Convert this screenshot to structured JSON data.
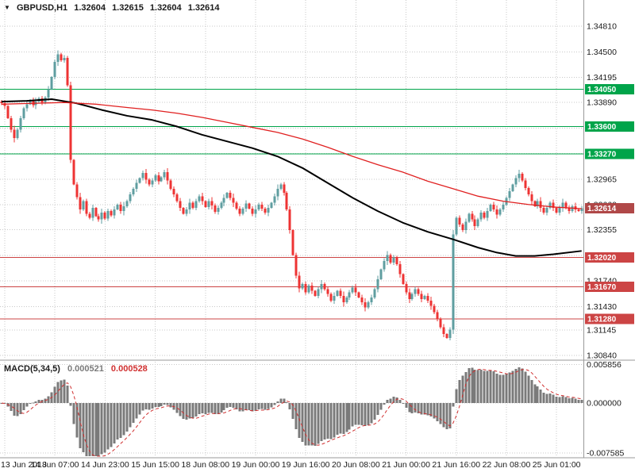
{
  "header": {
    "dropdown_icon": "▼",
    "symbol_timeframe": "GBPUSD,H1",
    "open": "1.32604",
    "high": "1.32615",
    "low": "1.32604",
    "close": "1.32614"
  },
  "macd": {
    "title": "MACD(5,34,5)",
    "value1": "0.000521",
    "value2": "0.000528"
  },
  "colors": {
    "background": "#FFFFFF",
    "up_candle": "#5F9EA0",
    "down_candle": "#EE3333",
    "ma_black": "#000000",
    "ma_red": "#E02020",
    "level_green": "#00A44A",
    "level_red": "#CC4444",
    "current_price_bg": "#B04848",
    "histogram": "#7A7A7A",
    "signal": "#D03030",
    "grid": "#C9C9C9",
    "axis_text": "#1A1A1A",
    "separator": "#999999"
  },
  "chart_data": {
    "type": "candlestick",
    "symbol": "GBPUSD",
    "timeframe": "H1",
    "title": "GBPUSD,H1 1.32604 1.32615 1.32604 1.32614",
    "price_axis_ticks": [
      "1.34810",
      "1.34500",
      "1.34195",
      "1.33890",
      "1.33580",
      "1.33275",
      "1.32965",
      "1.32660",
      "1.32355",
      "1.32045",
      "1.31740",
      "1.31430",
      "1.31145",
      "1.30840"
    ],
    "current_price": "1.32614",
    "green_levels": [
      "1.34050",
      "1.33600",
      "1.33270"
    ],
    "red_levels": [
      "1.32020",
      "1.31670",
      "1.31280"
    ],
    "x_labels": [
      "13 Jun 2018",
      "14 Jun 07:00",
      "14 Jun 23:00",
      "15 Jun 15:00",
      "18 Jun 08:00",
      "19 Jun 00:00",
      "19 Jun 16:00",
      "20 Jun 08:00",
      "21 Jun 00:00",
      "21 Jun 16:00",
      "22 Jun 08:00",
      "25 Jun 01:00"
    ],
    "x_label_bars": [
      1,
      17,
      33,
      49,
      65,
      81,
      97,
      113,
      129,
      145,
      161,
      177
    ],
    "price_range": [
      1.30802,
      1.35126
    ],
    "macd_params": [
      5,
      34,
      5
    ],
    "macd_axis_labels": [
      "0.005856",
      "0.000000",
      "-0.007585"
    ],
    "macd_range": [
      -0.0082,
      0.0063
    ],
    "first_open": 1.339,
    "closes": [
      1.3388,
      1.3385,
      1.337,
      1.3356,
      1.3346,
      1.3356,
      1.337,
      1.3382,
      1.3387,
      1.3392,
      1.3386,
      1.339,
      1.3394,
      1.3389,
      1.3395,
      1.3405,
      1.342,
      1.3438,
      1.3447,
      1.344,
      1.3443,
      1.341,
      1.332,
      1.329,
      1.3275,
      1.326,
      1.327,
      1.3255,
      1.325,
      1.3262,
      1.3252,
      1.3248,
      1.3256,
      1.3249,
      1.3258,
      1.3253,
      1.326,
      1.3266,
      1.3258,
      1.3264,
      1.327,
      1.3278,
      1.3285,
      1.3292,
      1.3298,
      1.3304,
      1.3296,
      1.329,
      1.3295,
      1.3301,
      1.3294,
      1.3299,
      1.3305,
      1.3295,
      1.3285,
      1.3278,
      1.327,
      1.3262,
      1.3255,
      1.326,
      1.3268,
      1.3262,
      1.327,
      1.3276,
      1.327,
      1.3263,
      1.327,
      1.3265,
      1.3257,
      1.3262,
      1.3268,
      1.3274,
      1.328,
      1.3274,
      1.3268,
      1.3261,
      1.3255,
      1.3261,
      1.3267,
      1.3261,
      1.3255,
      1.326,
      1.3266,
      1.3261,
      1.3256,
      1.3262,
      1.3268,
      1.3276,
      1.3285,
      1.329,
      1.328,
      1.326,
      1.3235,
      1.3205,
      1.318,
      1.3165,
      1.317,
      1.316,
      1.3168,
      1.3162,
      1.3156,
      1.3164,
      1.317,
      1.3164,
      1.3158,
      1.315,
      1.3156,
      1.3162,
      1.3156,
      1.3148,
      1.3154,
      1.316,
      1.3166,
      1.316,
      1.3154,
      1.3148,
      1.3142,
      1.3148,
      1.3154,
      1.3164,
      1.3176,
      1.3188,
      1.3198,
      1.3205,
      1.3196,
      1.3202,
      1.3194,
      1.3182,
      1.317,
      1.316,
      1.3152,
      1.3158,
      1.3164,
      1.3158,
      1.3152,
      1.3156,
      1.315,
      1.3144,
      1.3136,
      1.3128,
      1.3118,
      1.311,
      1.3105,
      1.3115,
      1.323,
      1.325,
      1.3242,
      1.3235,
      1.3245,
      1.3255,
      1.3248,
      1.324,
      1.3248,
      1.3256,
      1.325,
      1.3258,
      1.3266,
      1.326,
      1.3254,
      1.326,
      1.3266,
      1.3274,
      1.3282,
      1.329,
      1.3298,
      1.3303,
      1.3295,
      1.3286,
      1.3278,
      1.327,
      1.3264,
      1.327,
      1.3262,
      1.3256,
      1.3262,
      1.3268,
      1.3262,
      1.3256,
      1.3262,
      1.3268,
      1.3262,
      1.3258,
      1.3264,
      1.326,
      1.3258,
      1.32614
    ],
    "ma_black_points": [
      [
        0,
        1.339
      ],
      [
        8,
        1.3391
      ],
      [
        16,
        1.3393
      ],
      [
        24,
        1.3388
      ],
      [
        32,
        1.338
      ],
      [
        40,
        1.3373
      ],
      [
        48,
        1.3368
      ],
      [
        56,
        1.336
      ],
      [
        64,
        1.335
      ],
      [
        72,
        1.3342
      ],
      [
        80,
        1.3334
      ],
      [
        88,
        1.3324
      ],
      [
        96,
        1.331
      ],
      [
        104,
        1.3292
      ],
      [
        112,
        1.3274
      ],
      [
        120,
        1.3258
      ],
      [
        128,
        1.3244
      ],
      [
        136,
        1.3233
      ],
      [
        144,
        1.3224
      ],
      [
        152,
        1.3214
      ],
      [
        158,
        1.3208
      ],
      [
        164,
        1.3204
      ],
      [
        170,
        1.3204
      ],
      [
        176,
        1.3206
      ],
      [
        185,
        1.321
      ]
    ],
    "ma_red_points": [
      [
        0,
        1.3387
      ],
      [
        10,
        1.3388
      ],
      [
        20,
        1.3389
      ],
      [
        30,
        1.3387
      ],
      [
        40,
        1.3383
      ],
      [
        48,
        1.338
      ],
      [
        56,
        1.3376
      ],
      [
        64,
        1.3371
      ],
      [
        72,
        1.3365
      ],
      [
        80,
        1.3359
      ],
      [
        88,
        1.3353
      ],
      [
        96,
        1.3345
      ],
      [
        104,
        1.3335
      ],
      [
        112,
        1.3324
      ],
      [
        120,
        1.3314
      ],
      [
        128,
        1.3305
      ],
      [
        136,
        1.3294
      ],
      [
        144,
        1.3285
      ],
      [
        152,
        1.3276
      ],
      [
        160,
        1.327
      ],
      [
        168,
        1.3266
      ],
      [
        176,
        1.3263
      ],
      [
        185,
        1.3261
      ]
    ]
  }
}
